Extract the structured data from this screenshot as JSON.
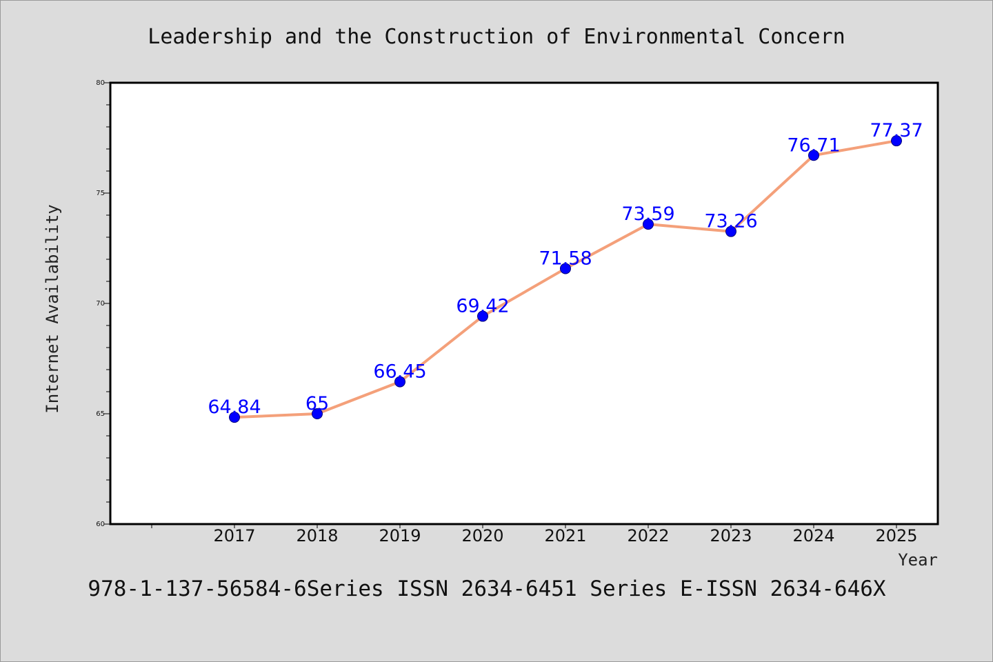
{
  "chart_data": {
    "type": "line",
    "title": "Leadership and the Construction of Environmental Concern",
    "xlabel": "Year",
    "ylabel": "Internet Availability",
    "x": [
      "2017",
      "2018",
      "2019",
      "2020",
      "2021",
      "2022",
      "2023",
      "2024",
      "2025"
    ],
    "series": [
      {
        "values": [
          64.84,
          65,
          66.45,
          69.42,
          71.58,
          73.59,
          73.26,
          76.71,
          77.37
        ],
        "data_labels": [
          "64.84",
          "65",
          "66.45",
          "69.42",
          "71.58",
          "73.59",
          "73.26",
          "76.71",
          "77.37"
        ],
        "line_color": "#f4a07a",
        "marker_color": "#0000ff"
      }
    ],
    "ylim": [
      60,
      80
    ],
    "yticks": [
      "60",
      "65",
      "70",
      "75",
      "80"
    ],
    "x_slots": 10,
    "grid": false,
    "legend": "none"
  },
  "footer": {
    "text": "978-1-137-56584-6Series ISSN 2634-6451 Series E-ISSN 2634-646X"
  },
  "colors": {
    "background": "#dcdcdc",
    "plot_background": "#ffffff",
    "axis": "#000000",
    "line": "#f4a07a",
    "marker": "#0000ff",
    "data_label": "#0000ff"
  }
}
